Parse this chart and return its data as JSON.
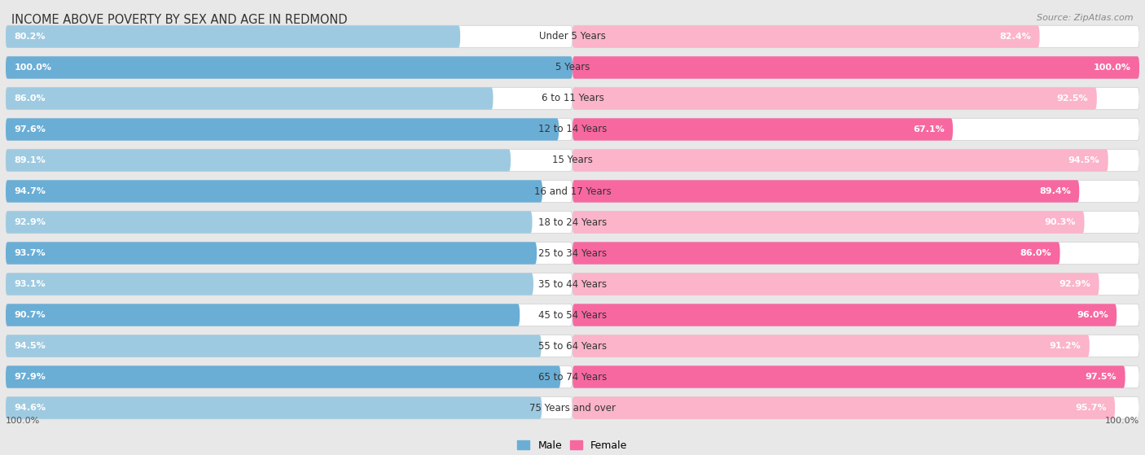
{
  "title": "INCOME ABOVE POVERTY BY SEX AND AGE IN REDMOND",
  "source": "Source: ZipAtlas.com",
  "categories": [
    "Under 5 Years",
    "5 Years",
    "6 to 11 Years",
    "12 to 14 Years",
    "15 Years",
    "16 and 17 Years",
    "18 to 24 Years",
    "25 to 34 Years",
    "35 to 44 Years",
    "45 to 54 Years",
    "55 to 64 Years",
    "65 to 74 Years",
    "75 Years and over"
  ],
  "male_values": [
    80.2,
    100.0,
    86.0,
    97.6,
    89.1,
    94.7,
    92.9,
    93.7,
    93.1,
    90.7,
    94.5,
    97.9,
    94.6
  ],
  "female_values": [
    82.4,
    100.0,
    92.5,
    67.1,
    94.5,
    89.4,
    90.3,
    86.0,
    92.9,
    96.0,
    91.2,
    97.5,
    95.7
  ],
  "male_color_dark": "#6aaed6",
  "male_color_light": "#9ecae1",
  "female_color_dark": "#f768a1",
  "female_color_light": "#fbb4c9",
  "bg_color": "#e8e8e8",
  "bar_bg_color": "#f0f0f0",
  "pill_bg_color": "#e0e0e0",
  "legend_male": "Male",
  "legend_female": "Female",
  "max_val": 100.0,
  "title_fontsize": 10.5,
  "label_fontsize": 8.5,
  "value_fontsize": 8.0,
  "source_fontsize": 8.0
}
